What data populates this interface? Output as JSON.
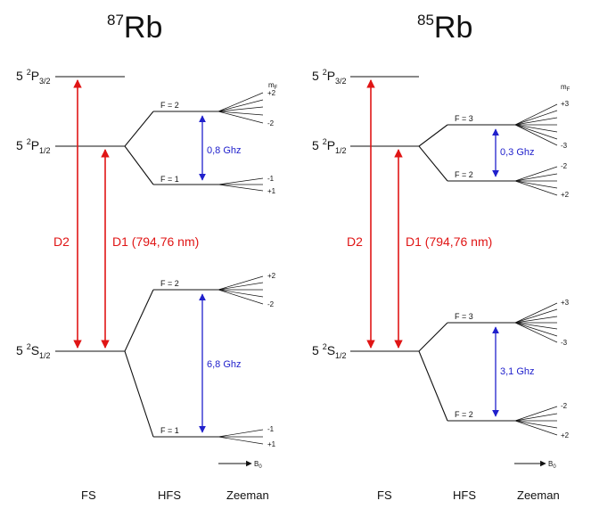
{
  "colors": {
    "fine_structure_arrow": "#e01515",
    "hyperfine_arrow": "#2020cc",
    "lines": "#111111"
  },
  "panels": [
    {
      "isotope": {
        "mass": "87",
        "symbol": "Rb"
      },
      "levels": {
        "p32": {
          "n": "5",
          "sup": "2",
          "letter": "P",
          "sub": "3/2"
        },
        "p12": {
          "n": "5",
          "sup": "2",
          "letter": "P",
          "sub": "1/2"
        },
        "s12": {
          "n": "5",
          "sup": "2",
          "letter": "S",
          "sub": "1/2"
        }
      },
      "transitions": {
        "d2": "D2",
        "d1": "D1 (794,76 nm)"
      },
      "p_hfs": {
        "upper": "F = 2",
        "lower": "F = 1",
        "splitting": "0,8 Ghz",
        "mf_header": "m",
        "mf_header_sub": "F",
        "upper_m": [
          "+2",
          "-2"
        ],
        "lower_m": [
          "-1",
          "+1"
        ]
      },
      "s_hfs": {
        "upper": "F = 2",
        "lower": "F = 1",
        "splitting": "6,8 Ghz",
        "upper_m": [
          "+2",
          "-2"
        ],
        "lower_m": [
          "-1",
          "+1"
        ]
      },
      "bfield": {
        "letter": "B",
        "sub": "0"
      },
      "footer": [
        "FS",
        "HFS",
        "Zeeman"
      ]
    },
    {
      "isotope": {
        "mass": "85",
        "symbol": "Rb"
      },
      "levels": {
        "p32": {
          "n": "5",
          "sup": "2",
          "letter": "P",
          "sub": "3/2"
        },
        "p12": {
          "n": "5",
          "sup": "2",
          "letter": "P",
          "sub": "1/2"
        },
        "s12": {
          "n": "5",
          "sup": "2",
          "letter": "S",
          "sub": "1/2"
        }
      },
      "transitions": {
        "d2": "D2",
        "d1": "D1 (794,76 nm)"
      },
      "p_hfs": {
        "upper": "F = 3",
        "lower": "F = 2",
        "splitting": "0,3 Ghz",
        "mf_header": "m",
        "mf_header_sub": "F",
        "upper_m": [
          "+3",
          "-3"
        ],
        "lower_m": [
          "-2",
          "+2"
        ]
      },
      "s_hfs": {
        "upper": "F = 3",
        "lower": "F = 2",
        "splitting": "3,1 Ghz",
        "upper_m": [
          "+3",
          "-3"
        ],
        "lower_m": [
          "-2",
          "+2"
        ]
      },
      "bfield": {
        "letter": "B",
        "sub": "0"
      },
      "footer": [
        "FS",
        "HFS",
        "Zeeman"
      ]
    }
  ]
}
